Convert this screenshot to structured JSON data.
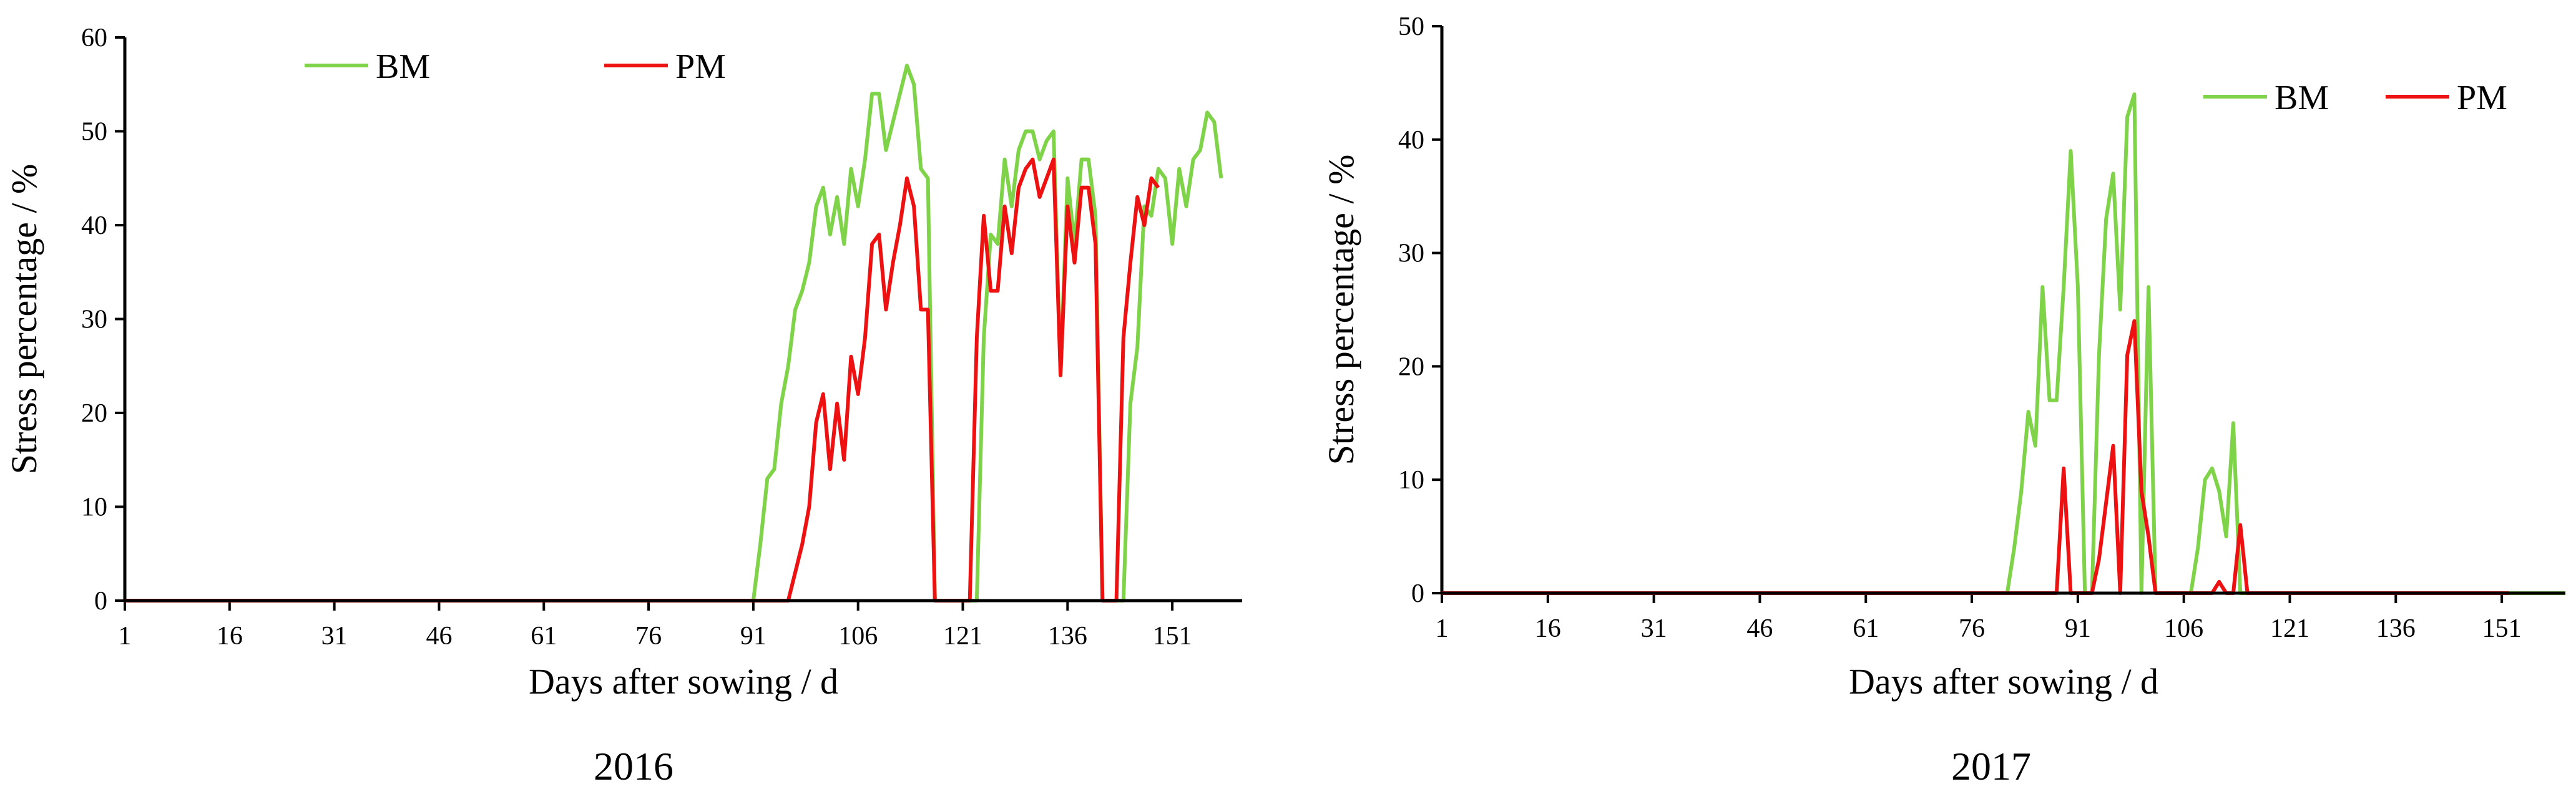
{
  "chart_data": [
    {
      "type": "line",
      "caption": "2016",
      "xlabel": "Days after sowing / d",
      "ylabel": "Stress percentage / %",
      "xlim": [
        1,
        161
      ],
      "ylim": [
        0,
        60
      ],
      "xticks": [
        1,
        16,
        31,
        46,
        61,
        76,
        91,
        106,
        121,
        136,
        151
      ],
      "yticks": [
        0,
        10,
        20,
        30,
        40,
        50,
        60
      ],
      "legend_position": "top-left",
      "series": [
        {
          "name": "BM",
          "color": "#7ed348",
          "points": [
            [
              1,
              0
            ],
            [
              91,
              0
            ],
            [
              92,
              6
            ],
            [
              93,
              13
            ],
            [
              94,
              14
            ],
            [
              95,
              21
            ],
            [
              96,
              25
            ],
            [
              97,
              31
            ],
            [
              98,
              33
            ],
            [
              99,
              36
            ],
            [
              100,
              42
            ],
            [
              101,
              44
            ],
            [
              102,
              39
            ],
            [
              103,
              43
            ],
            [
              104,
              38
            ],
            [
              105,
              46
            ],
            [
              106,
              42
            ],
            [
              107,
              47
            ],
            [
              108,
              54
            ],
            [
              109,
              54
            ],
            [
              110,
              48
            ],
            [
              111,
              51
            ],
            [
              112,
              54
            ],
            [
              113,
              57
            ],
            [
              114,
              55
            ],
            [
              115,
              46
            ],
            [
              116,
              45
            ],
            [
              117,
              0
            ],
            [
              123,
              0
            ],
            [
              124,
              28
            ],
            [
              125,
              39
            ],
            [
              126,
              38
            ],
            [
              127,
              47
            ],
            [
              128,
              42
            ],
            [
              129,
              48
            ],
            [
              130,
              50
            ],
            [
              131,
              50
            ],
            [
              132,
              47
            ],
            [
              133,
              49
            ],
            [
              134,
              50
            ],
            [
              135,
              24
            ],
            [
              136,
              45
            ],
            [
              137,
              38
            ],
            [
              138,
              47
            ],
            [
              139,
              47
            ],
            [
              140,
              41
            ],
            [
              141,
              0
            ],
            [
              144,
              0
            ],
            [
              145,
              21
            ],
            [
              146,
              27
            ],
            [
              147,
              42
            ],
            [
              148,
              41
            ],
            [
              149,
              46
            ],
            [
              150,
              45
            ],
            [
              151,
              38
            ],
            [
              152,
              46
            ],
            [
              153,
              42
            ],
            [
              154,
              47
            ],
            [
              155,
              48
            ],
            [
              156,
              52
            ],
            [
              157,
              51
            ],
            [
              158,
              45
            ]
          ]
        },
        {
          "name": "PM",
          "color": "#ee1111",
          "points": [
            [
              1,
              0
            ],
            [
              96,
              0
            ],
            [
              97,
              3
            ],
            [
              98,
              6
            ],
            [
              99,
              10
            ],
            [
              100,
              19
            ],
            [
              101,
              22
            ],
            [
              102,
              14
            ],
            [
              103,
              21
            ],
            [
              104,
              15
            ],
            [
              105,
              26
            ],
            [
              106,
              22
            ],
            [
              107,
              28
            ],
            [
              108,
              38
            ],
            [
              109,
              39
            ],
            [
              110,
              31
            ],
            [
              111,
              36
            ],
            [
              112,
              40
            ],
            [
              113,
              45
            ],
            [
              114,
              42
            ],
            [
              115,
              31
            ],
            [
              116,
              31
            ],
            [
              117,
              0
            ],
            [
              122,
              0
            ],
            [
              123,
              28
            ],
            [
              124,
              41
            ],
            [
              125,
              33
            ],
            [
              126,
              33
            ],
            [
              127,
              42
            ],
            [
              128,
              37
            ],
            [
              129,
              44
            ],
            [
              130,
              46
            ],
            [
              131,
              47
            ],
            [
              132,
              43
            ],
            [
              133,
              45
            ],
            [
              134,
              47
            ],
            [
              135,
              24
            ],
            [
              136,
              42
            ],
            [
              137,
              36
            ],
            [
              138,
              44
            ],
            [
              139,
              44
            ],
            [
              140,
              38
            ],
            [
              141,
              0
            ],
            [
              143,
              0
            ],
            [
              144,
              28
            ],
            [
              145,
              36
            ],
            [
              146,
              43
            ],
            [
              147,
              40
            ],
            [
              148,
              45
            ],
            [
              149,
              44
            ]
          ]
        }
      ]
    },
    {
      "type": "line",
      "caption": "2017",
      "xlabel": "Days after sowing / d",
      "ylabel": "Stress percentage / %",
      "xlim": [
        1,
        160
      ],
      "ylim": [
        0,
        50
      ],
      "xticks": [
        1,
        16,
        31,
        46,
        61,
        76,
        91,
        106,
        121,
        136,
        151
      ],
      "yticks": [
        0,
        10,
        20,
        30,
        40,
        50
      ],
      "legend_position": "top-right",
      "series": [
        {
          "name": "BM",
          "color": "#7ed348",
          "points": [
            [
              1,
              0
            ],
            [
              81,
              0
            ],
            [
              82,
              4
            ],
            [
              83,
              9
            ],
            [
              84,
              16
            ],
            [
              85,
              13
            ],
            [
              86,
              27
            ],
            [
              87,
              17
            ],
            [
              88,
              17
            ],
            [
              89,
              27
            ],
            [
              90,
              39
            ],
            [
              91,
              27
            ],
            [
              92,
              0
            ],
            [
              93,
              0
            ],
            [
              94,
              21
            ],
            [
              95,
              33
            ],
            [
              96,
              37
            ],
            [
              97,
              25
            ],
            [
              98,
              42
            ],
            [
              99,
              44
            ],
            [
              100,
              0
            ],
            [
              101,
              27
            ],
            [
              102,
              0
            ],
            [
              107,
              0
            ],
            [
              108,
              4
            ],
            [
              109,
              10
            ],
            [
              110,
              11
            ],
            [
              111,
              9
            ],
            [
              112,
              5
            ],
            [
              113,
              15
            ],
            [
              114,
              0
            ],
            [
              160,
              0
            ]
          ]
        },
        {
          "name": "PM",
          "color": "#ee1111",
          "points": [
            [
              1,
              0
            ],
            [
              88,
              0
            ],
            [
              89,
              11
            ],
            [
              90,
              0
            ],
            [
              93,
              0
            ],
            [
              94,
              3
            ],
            [
              95,
              8
            ],
            [
              96,
              13
            ],
            [
              97,
              0
            ],
            [
              98,
              21
            ],
            [
              99,
              24
            ],
            [
              100,
              9
            ],
            [
              101,
              5
            ],
            [
              102,
              0
            ],
            [
              110,
              0
            ],
            [
              111,
              1
            ],
            [
              112,
              0
            ],
            [
              113,
              0
            ],
            [
              114,
              6
            ],
            [
              115,
              0
            ],
            [
              152,
              0
            ]
          ]
        }
      ]
    }
  ]
}
